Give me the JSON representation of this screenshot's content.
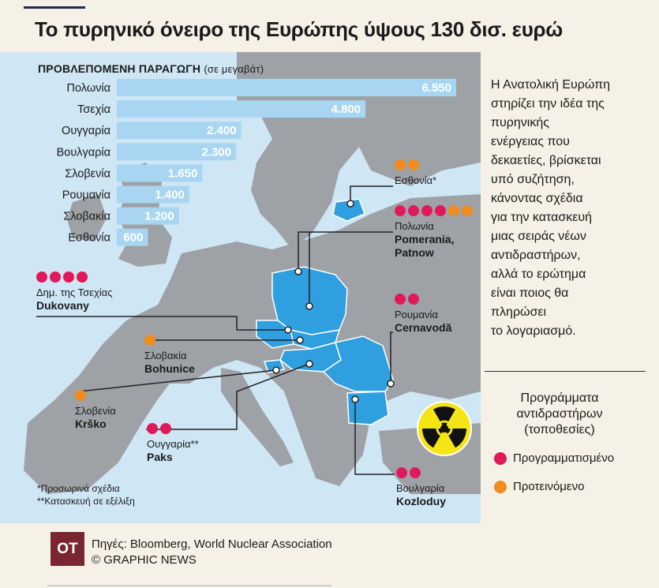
{
  "title": "Το πυρηνικό όνειρο της Ευρώπης ύψους 130 δισ. ευρώ",
  "colors": {
    "planned": "#e0195a",
    "proposed": "#f08c1e",
    "highlight_country": "#2f9fe0",
    "bar": "#a8d6f2",
    "sea": "#cfe6f5",
    "land": "#9ea2a6"
  },
  "chart_data": {
    "type": "bar",
    "orientation": "horizontal",
    "title": "ΠΡΟΒΛΕΠΟΜΕΝΗ ΠΑΡΑΓΩΓΗ",
    "unit": "(σε μεγαβάτ)",
    "categories": [
      "Πολωνία",
      "Τσεχία",
      "Ουγγαρία",
      "Βουλγαρία",
      "Σλοβενία",
      "Ρουμανία",
      "Σλοβακία",
      "Εσθονία"
    ],
    "values": [
      6550,
      4800,
      2400,
      2300,
      1650,
      1400,
      1200,
      600
    ],
    "value_labels": [
      "6.550",
      "4.800",
      "2.400",
      "2.300",
      "1.650",
      "1.400",
      "1.200",
      "600"
    ],
    "xlim": [
      0,
      6550
    ]
  },
  "callouts": [
    {
      "country": "Εσθονία*",
      "plant": "",
      "planned": 0,
      "proposed": 2
    },
    {
      "country": "Πολωνία",
      "plant": "Pomerania,",
      "plant2": "Patnow",
      "planned": 4,
      "proposed": 2
    },
    {
      "country": "Δημ. της Τσεχίας",
      "plant": "Dukovany",
      "planned": 4,
      "proposed": 0
    },
    {
      "country": "Ρουμανία",
      "plant": "Cernavodă",
      "planned": 2,
      "proposed": 0
    },
    {
      "country": "Σλοβακία",
      "plant": "Bohunice",
      "planned": 0,
      "proposed": 1
    },
    {
      "country": "Σλοβενία",
      "plant": "Krško",
      "planned": 0,
      "proposed": 1
    },
    {
      "country": "Ουγγαρία**",
      "plant": "Paks",
      "planned": 2,
      "proposed": 0
    },
    {
      "country": "Βουλγαρία",
      "plant": "Kozloduy",
      "planned": 2,
      "proposed": 0
    }
  ],
  "footnotes": {
    "provisional": "*Προσωρινά σχέδια",
    "under_construction": "**Κατασκευή σε εξέλιξη"
  },
  "side_text": [
    "Η Ανατολική Ευρώπη",
    "στηρίζει την ιδέα της",
    "πυρηνικής",
    "ενέργειας που",
    "δεκαετίες, βρίσκεται",
    "υπό συζήτηση,",
    "κάνοντας σχέδια",
    "για την κατασκευή",
    "μιας σειράς νέων",
    "αντιδραστήρων,",
    "αλλά το ερώτημα",
    "είναι ποιος θα",
    "πληρώσει",
    "το λογαριασμό."
  ],
  "legend": {
    "title_line1": "Προγράμματα",
    "title_line2": "αντιδραστήρων",
    "title_line3": "(τοποθεσίες)",
    "planned_label": "Προγραμματισμένο",
    "proposed_label": "Προτεινόμενο"
  },
  "footer": {
    "logo": "ΟΤ",
    "sources": "Πηγές: Bloomberg, World Nuclear Association",
    "credit": "© GRAPHIC NEWS"
  }
}
